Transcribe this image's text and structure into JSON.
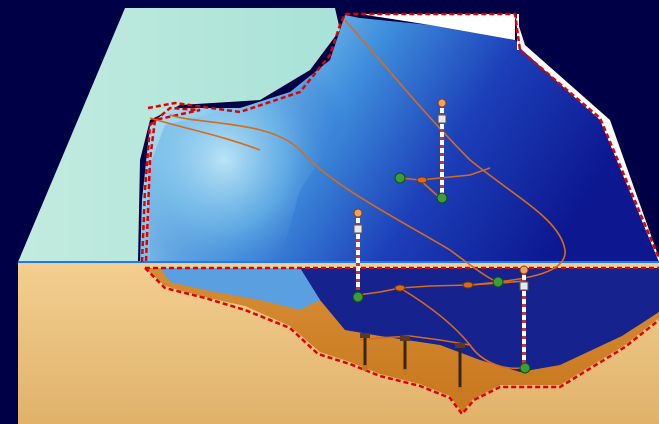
{
  "diagram": {
    "kind": "subsea-basin-block-diagram",
    "colors": {
      "background": "#000046",
      "deep_water": "#0c1a9a",
      "shallow_water": "#7fc6ea",
      "coast": "#bfe9df",
      "seabed_sediment": "#e3b46f",
      "reservoir_fill": "#d98a2a",
      "boundary_dashed": "#e00000",
      "pipeline": "#d66b1c",
      "waterline": "#1e78ff"
    },
    "icons": {
      "surface_buoy": "orange-buoy",
      "riser": "white-red-striped-riser",
      "wellhead": "green-wellhead",
      "manifold": "orange-manifold",
      "well_pile": "dark-well-pile"
    }
  }
}
